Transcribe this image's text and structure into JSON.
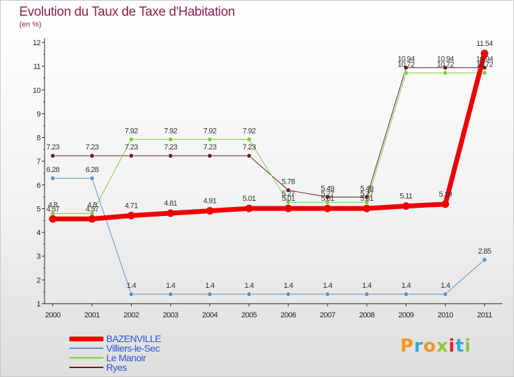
{
  "title": "Evolution du Taux de Taxe d'Habitation",
  "unit_label": "(en %)",
  "logo_text": "Proxiti",
  "logo_colors": [
    "#f7941d",
    "#35a7db",
    "#f7941d",
    "#8cc63f",
    "#ed1c24",
    "#35a7db",
    "#8cc63f"
  ],
  "chart_data": {
    "type": "line",
    "x": [
      2000,
      2001,
      2002,
      2003,
      2004,
      2005,
      2006,
      2007,
      2008,
      2009,
      2010,
      2011
    ],
    "ylim": [
      1,
      12
    ],
    "yticks": [
      1,
      2,
      3,
      4,
      5,
      6,
      7,
      8,
      9,
      10,
      11,
      12
    ],
    "grid": false,
    "legend_position": "bottom-left",
    "series": [
      {
        "name": "Ryes",
        "color": "#6b1a22",
        "width": 1,
        "values": [
          7.23,
          7.23,
          7.23,
          7.23,
          7.23,
          7.23,
          5.78,
          5.49,
          5.49,
          10.94,
          10.94,
          10.94
        ],
        "labels": [
          "7.23",
          "7.23",
          "7.23",
          "7.23",
          "7.23",
          "7.23",
          "5.78",
          "5.49",
          "5.49",
          "10.94",
          "10.94",
          "10.94"
        ]
      },
      {
        "name": "Le Manoir",
        "color": "#7dcd3e",
        "width": 1,
        "values": [
          4.8,
          4.8,
          7.92,
          7.92,
          7.92,
          7.92,
          5.27,
          5.27,
          5.27,
          10.72,
          10.72,
          10.72
        ],
        "labels": [
          "4.8",
          "4.8",
          "7.92",
          "7.92",
          "7.92",
          "7.92",
          "5.27",
          "5.27",
          "5.27",
          "10.72",
          "10.72",
          "10.72"
        ]
      },
      {
        "name": "Villiers-le-Sec",
        "color": "#5b8fc7",
        "width": 1,
        "values": [
          6.28,
          6.28,
          1.4,
          1.4,
          1.4,
          1.4,
          1.4,
          1.4,
          1.4,
          1.4,
          1.4,
          2.85
        ],
        "labels": [
          "6.28",
          "6.28",
          "1.4",
          "1.4",
          "1.4",
          "1.4",
          "1.4",
          "1.4",
          "1.4",
          "1.4",
          "1.4",
          "2.85"
        ]
      },
      {
        "name": "BAZENVILLE",
        "color": "#ee0000",
        "width": 7,
        "values": [
          4.57,
          4.57,
          4.71,
          4.81,
          4.91,
          5.01,
          5.01,
          5.01,
          5.01,
          5.11,
          5.19,
          11.54
        ],
        "labels": [
          "4.57",
          "4.57",
          "4.71",
          "4.81",
          "4.91",
          "5.01",
          "5.01",
          "5.01",
          "5.01",
          "5.11",
          "5.19",
          "11.54"
        ]
      }
    ]
  },
  "legend": [
    {
      "name": "BAZENVILLE",
      "color": "#ee0000",
      "thickness": 7
    },
    {
      "name": "Villiers-le-Sec",
      "color": "#5b8fc7",
      "thickness": 2
    },
    {
      "name": "Le Manoir",
      "color": "#7dcd3e",
      "thickness": 2
    },
    {
      "name": "Ryes",
      "color": "#6b1a22",
      "thickness": 2
    }
  ]
}
